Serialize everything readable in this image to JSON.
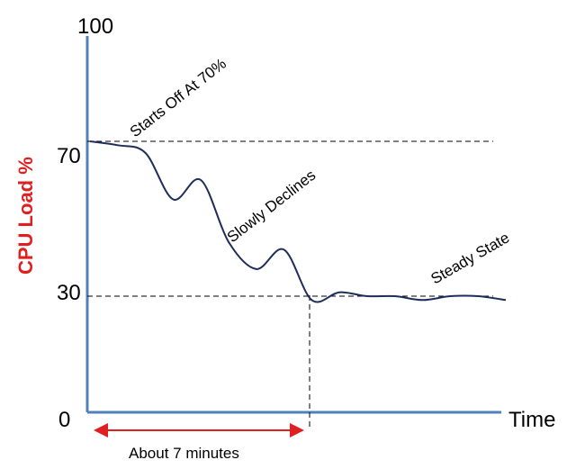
{
  "chart_data": {
    "type": "line",
    "xlabel": "Time",
    "ylabel": "CPU  Load %",
    "ylim": [
      0,
      100
    ],
    "y_ticks": [
      "100",
      "70",
      "30",
      "0"
    ],
    "reference_lines": [
      70,
      30
    ],
    "series": [
      {
        "x": [
          0,
          1,
          2,
          3,
          4,
          5,
          6,
          7,
          8,
          9,
          10,
          11,
          12,
          13,
          14,
          15
        ],
        "values": [
          70,
          69,
          67,
          55,
          60,
          44,
          37,
          42,
          29,
          31,
          30,
          30,
          29,
          30,
          30,
          29
        ]
      }
    ],
    "annotations": {
      "start": "Starts Off At 70%",
      "decline": "Slowly Declines",
      "steady": "Steady State",
      "duration": "About 7 minutes"
    },
    "colors": {
      "axis": "#4f81bd",
      "line": "#1f2d5a",
      "ylabel": "#e02020",
      "duration_arrow": "#e02020"
    }
  }
}
